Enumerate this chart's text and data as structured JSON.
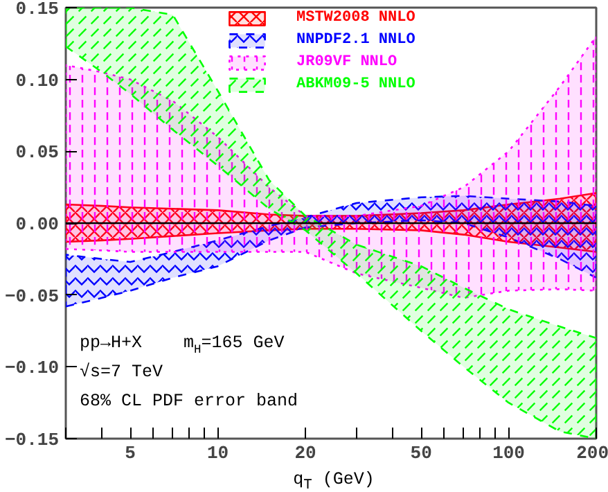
{
  "chart_data": {
    "type": "line",
    "xlabel": "q$_{T}$ (GeV)",
    "log": "x",
    "legend": "top",
    "grid": false,
    "xlim": [
      3,
      200
    ],
    "ylim": [
      -0.15,
      0.15
    ],
    "xticks": [
      {
        "value": 3,
        "label": null
      },
      {
        "value": 4,
        "label": null
      },
      5,
      {
        "value": 6,
        "label": null
      },
      {
        "value": 7,
        "label": null
      },
      {
        "value": 8,
        "label": null
      },
      {
        "value": 9,
        "label": null
      },
      10,
      20,
      {
        "value": 30,
        "label": null
      },
      {
        "value": 40,
        "label": null
      },
      50,
      {
        "value": 60,
        "label": null
      },
      {
        "value": 70,
        "label": null
      },
      {
        "value": 80,
        "label": null
      },
      {
        "value": 90,
        "label": null
      },
      100,
      200
    ],
    "yticks": [
      {
        "value": -0.15,
        "label": "−0.15"
      },
      {
        "value": -0.1,
        "label": "−0.10"
      },
      {
        "value": -0.05,
        "label": "−0.05"
      },
      {
        "value": 0,
        "label": "0.00"
      },
      {
        "value": 0.05,
        "label": "0.05"
      },
      {
        "value": 0.1,
        "label": "0.10"
      },
      {
        "value": 0.15,
        "label": "0.15"
      }
    ],
    "x": [
      3,
      4,
      5,
      7,
      10,
      15,
      20,
      30,
      50,
      70,
      100,
      150,
      200
    ],
    "series": [
      {
        "name": "MSTW2008 NNLO",
        "color": "#ff0000",
        "line_style": "solid",
        "values": [
          null,
          null,
          null,
          null,
          null,
          null,
          null,
          null,
          null,
          null,
          null,
          null,
          null
        ],
        "lower": [
          -0.013,
          -0.012,
          -0.011,
          -0.009,
          -0.007,
          -0.005,
          -0.004,
          -0.004,
          -0.005,
          -0.008,
          -0.013,
          -0.017,
          -0.02
        ],
        "upper": [
          0.013,
          0.012,
          0.011,
          0.01,
          0.009,
          0.006,
          0.005,
          0.005,
          0.007,
          0.009,
          0.013,
          0.017,
          0.021
        ]
      },
      {
        "name": "NNPDF2.1 NNLO",
        "color": "#0000ff",
        "line_style": "dashed",
        "values": [
          null,
          null,
          null,
          null,
          null,
          null,
          null,
          null,
          null,
          null,
          null,
          null,
          null
        ],
        "lower": [
          -0.058,
          -0.052,
          -0.047,
          -0.038,
          -0.03,
          -0.012,
          -0.003,
          0.0,
          0.002,
          0.0,
          -0.01,
          -0.025,
          -0.038
        ],
        "upper": [
          -0.022,
          -0.025,
          -0.027,
          -0.02,
          -0.012,
          -0.002,
          0.004,
          0.014,
          0.018,
          0.019,
          0.017,
          0.015,
          0.012
        ]
      },
      {
        "name": "JR09VF NNLO",
        "color": "#ff00ff",
        "line_style": "dotted",
        "values": [
          null,
          null,
          null,
          null,
          null,
          null,
          null,
          null,
          null,
          null,
          null,
          null,
          null
        ],
        "lower": [
          -0.018,
          -0.019,
          -0.02,
          -0.02,
          -0.02,
          -0.02,
          -0.02,
          -0.035,
          -0.045,
          -0.052,
          -0.047,
          -0.046,
          -0.047
        ],
        "upper": [
          0.11,
          0.105,
          0.1,
          0.085,
          0.06,
          0.025,
          0.005,
          0.005,
          0.012,
          0.025,
          0.05,
          0.095,
          0.13
        ]
      },
      {
        "name": "ABKM09-5 NNLO",
        "color": "#00ff00",
        "line_style": "dashed",
        "values": [
          null,
          null,
          null,
          null,
          null,
          null,
          null,
          null,
          null,
          null,
          null,
          null,
          null
        ],
        "lower": [
          0.123,
          0.105,
          0.09,
          0.065,
          0.04,
          0.01,
          -0.005,
          -0.035,
          -0.075,
          -0.1,
          -0.125,
          -0.145,
          -0.15
        ],
        "upper": [
          0.15,
          0.15,
          0.15,
          0.145,
          0.092,
          0.03,
          0.005,
          -0.015,
          -0.03,
          -0.045,
          -0.06,
          -0.072,
          -0.08
        ]
      }
    ],
    "ref_lines": [
      {
        "axis": "y",
        "value": 0,
        "color": "#000000"
      }
    ],
    "annotations": [
      "pp→H+X    m$_{H}$=165 GeV",
      "√s=7 TeV",
      "68% CL PDF error band"
    ]
  }
}
